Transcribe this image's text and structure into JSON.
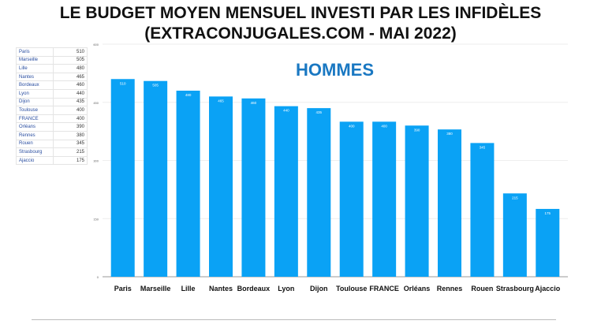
{
  "chart_data": {
    "type": "bar",
    "title": "LE BUDGET MOYEN MENSUEL INVESTI PAR LES INFIDÈLES",
    "title_line2": "(EXTRACONJUGALES.COM - MAI 2022)",
    "subtitle": "HOMMES",
    "categories": [
      "Paris",
      "Marseille",
      "Lille",
      "Nantes",
      "Bordeaux",
      "Lyon",
      "Dijon",
      "Toulouse",
      "FRANCE",
      "Orléans",
      "Rennes",
      "Rouen",
      "Strasbourg",
      "Ajaccio"
    ],
    "values": [
      510,
      505,
      480,
      465,
      460,
      440,
      435,
      400,
      400,
      390,
      380,
      345,
      215,
      175
    ],
    "ylim": [
      0,
      600
    ],
    "yticks": [
      0,
      150,
      300,
      450,
      600
    ],
    "xlabel": "",
    "ylabel": "",
    "grid": true,
    "bar_color": "#0aa2f5"
  }
}
